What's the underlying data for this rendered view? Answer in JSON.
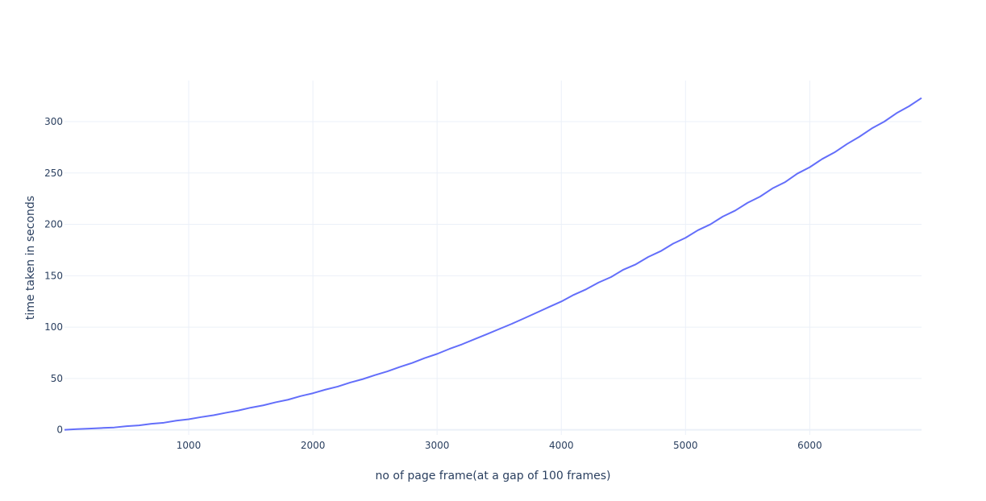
{
  "chart_data": {
    "type": "line",
    "title": "",
    "xlabel": "no of page frame(at a gap of 100 frames)",
    "ylabel": "time taken in seconds",
    "xlim": [
      0,
      6900
    ],
    "ylim": [
      -5,
      340
    ],
    "grid": true,
    "x_ticks": [
      1000,
      2000,
      3000,
      4000,
      5000,
      6000
    ],
    "y_ticks": [
      0,
      50,
      100,
      150,
      200,
      250,
      300
    ],
    "line_color": "#636efa",
    "series": [
      {
        "x": [
          0,
          100,
          200,
          300,
          400,
          500,
          600,
          700,
          800,
          900,
          1000,
          1100,
          1200,
          1300,
          1400,
          1500,
          1600,
          1700,
          1800,
          1900,
          2000,
          2100,
          2200,
          2300,
          2400,
          2500,
          2600,
          2700,
          2800,
          2900,
          3000,
          3100,
          3200,
          3300,
          3400,
          3500,
          3600,
          3700,
          3800,
          3900,
          4000,
          4100,
          4200,
          4300,
          4400,
          4500,
          4600,
          4700,
          4800,
          4900,
          5000,
          5100,
          5200,
          5300,
          5400,
          5500,
          5600,
          5700,
          5800,
          5900,
          6000,
          6100,
          6200,
          6300,
          6400,
          6500,
          6600,
          6700,
          6800,
          6900
        ],
        "y": [
          0,
          0.7,
          1.2,
          1.8,
          2.3,
          3.5,
          4.3,
          5.9,
          6.9,
          8.9,
          10.3,
          12.4,
          14.2,
          16.6,
          18.8,
          21.6,
          23.8,
          26.8,
          29.3,
          32.8,
          35.6,
          39.1,
          42.1,
          46.0,
          49.3,
          53.3,
          56.9,
          61.2,
          65.1,
          69.8,
          73.9,
          78.8,
          83.2,
          88.2,
          93.1,
          98.1,
          103.1,
          108.5,
          114.0,
          119.5,
          124.9,
          131.4,
          136.8,
          143.4,
          148.7,
          155.9,
          161.1,
          168.3,
          173.9,
          181.2,
          186.9,
          194.3,
          200.0,
          207.6,
          213.4,
          221.0,
          227.0,
          235.0,
          241.0,
          249.4,
          255.6,
          263.6,
          270.1,
          278.2,
          285.3,
          293.4,
          300.0,
          308.3,
          315.0,
          323.0
        ]
      }
    ]
  }
}
